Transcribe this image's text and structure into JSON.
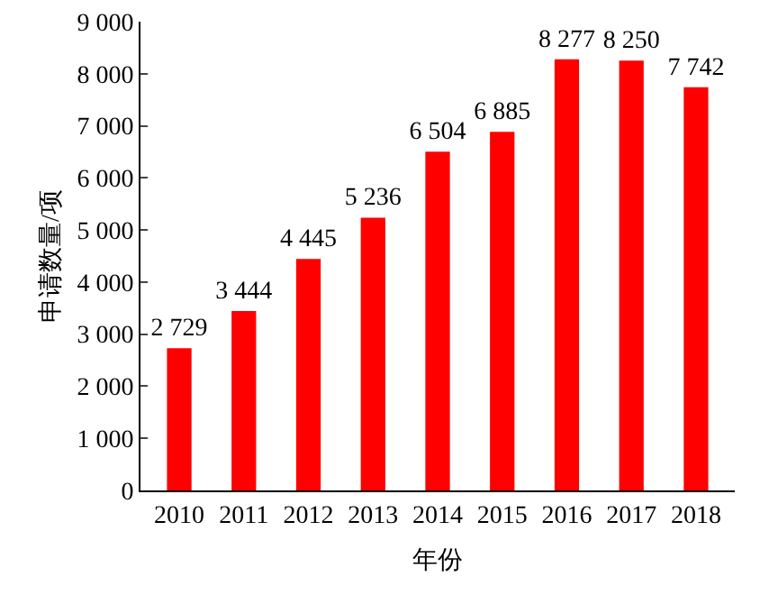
{
  "chart_data": {
    "type": "bar",
    "xlabel": "年份",
    "ylabel": "申请数量/项",
    "categories": [
      "2010",
      "2011",
      "2012",
      "2013",
      "2014",
      "2015",
      "2016",
      "2017",
      "2018"
    ],
    "values": [
      2729,
      3444,
      4445,
      5236,
      6504,
      6885,
      8277,
      8250,
      7742
    ],
    "value_labels": [
      "2 729",
      "3 444",
      "4 445",
      "5 236",
      "6 504",
      "6 885",
      "8 277",
      "8 250",
      "7 742"
    ],
    "color": "#ff0000",
    "ylim": [
      0,
      9000
    ],
    "yticks": [
      0,
      {
        "value": 1000,
        "label": "1 000"
      },
      {
        "value": 2000,
        "label": "2 000"
      },
      {
        "value": 3000,
        "label": "3 000"
      },
      {
        "value": 4000,
        "label": "4 000"
      },
      {
        "value": 5000,
        "label": "5 000"
      },
      {
        "value": 6000,
        "label": "6 000"
      },
      {
        "value": 7000,
        "label": "7 000"
      },
      {
        "value": 8000,
        "label": "8 000"
      },
      {
        "value": 9000,
        "label": "9 000"
      }
    ],
    "grid": false
  }
}
